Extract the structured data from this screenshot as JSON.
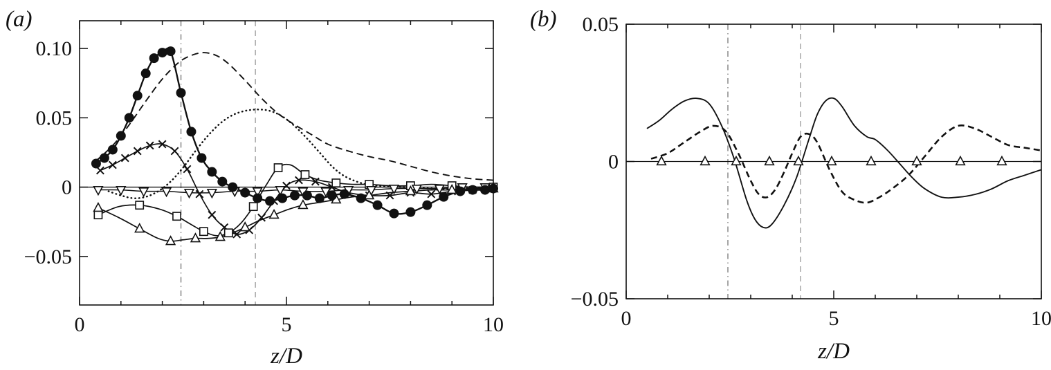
{
  "figure": {
    "description": "Two-panel line chart figure",
    "panel_count": 2
  },
  "chart_data": [
    {
      "type": "line",
      "panel_label": "(a)",
      "title": "",
      "xlabel": "z/D",
      "ylabel": "",
      "xlim": [
        0,
        10
      ],
      "ylim": [
        -0.085,
        0.12
      ],
      "grid": false,
      "legend": "none",
      "zero_line": true,
      "x_major_ticks": [
        0,
        5,
        10
      ],
      "x_tick_labels": [
        "0",
        "5",
        "10"
      ],
      "x_minor_ticks": [
        1,
        2,
        3,
        4,
        6,
        7,
        8,
        9
      ],
      "y_ticks": [
        -0.05,
        0,
        0.05,
        0.1
      ],
      "y_tick_labels": [
        "−0.05",
        "0",
        "0.05",
        "0.10"
      ],
      "ref_lines": [
        {
          "x": 2.45,
          "style": "dashdot",
          "color": "#8f8f8f"
        },
        {
          "x": 4.25,
          "style": "gray-dashed",
          "color": "#ababab"
        }
      ],
      "series": [
        {
          "name": "dashed-line",
          "style": "dashed",
          "width": 1.9,
          "marker": "none",
          "x": [
            0.4,
            0.8,
            1.2,
            1.6,
            2.0,
            2.4,
            2.7,
            3.0,
            3.3,
            3.6,
            4.0,
            4.4,
            4.8,
            5.2,
            5.6,
            6.0,
            6.5,
            7.0,
            7.5,
            8.0,
            8.5,
            9.0,
            9.5,
            10.0
          ],
          "y": [
            0.019,
            0.03,
            0.045,
            0.062,
            0.078,
            0.09,
            0.095,
            0.097,
            0.095,
            0.089,
            0.077,
            0.064,
            0.053,
            0.045,
            0.038,
            0.031,
            0.026,
            0.022,
            0.019,
            0.015,
            0.011,
            0.008,
            0.006,
            0.005
          ]
        },
        {
          "name": "dotted-line",
          "style": "dotted",
          "width": 2.5,
          "marker": "none",
          "x": [
            0.7,
            1.0,
            1.3,
            1.6,
            1.9,
            2.2,
            2.5,
            2.8,
            3.1,
            3.4,
            3.7,
            4.0,
            4.3,
            4.6,
            4.9,
            5.2,
            5.5,
            5.8,
            6.1,
            6.4,
            6.8,
            7.2,
            7.8,
            8.5,
            9.2,
            10.0
          ],
          "y": [
            -0.003,
            -0.006,
            -0.008,
            -0.007,
            -0.003,
            0.004,
            0.014,
            0.026,
            0.037,
            0.046,
            0.052,
            0.055,
            0.056,
            0.055,
            0.051,
            0.044,
            0.035,
            0.025,
            0.015,
            0.008,
            0.003,
            0.001,
            0.0,
            -0.001,
            -0.001,
            0.0
          ]
        },
        {
          "name": "cross-markers",
          "style": "solid",
          "width": 1.7,
          "marker": "x",
          "marker_every": 1,
          "x": [
            0.5,
            0.8,
            1.1,
            1.4,
            1.7,
            2.0,
            2.3,
            2.6,
            2.9,
            3.2,
            3.5,
            3.8,
            4.1,
            4.4,
            4.7,
            5.0,
            5.3,
            5.7,
            6.1,
            6.5,
            7.0,
            7.5,
            8.0,
            8.5,
            9.0,
            9.5,
            10.0
          ],
          "y": [
            0.012,
            0.016,
            0.021,
            0.026,
            0.03,
            0.031,
            0.026,
            0.013,
            -0.005,
            -0.02,
            -0.029,
            -0.034,
            -0.031,
            -0.022,
            -0.01,
            0.001,
            0.005,
            0.004,
            0.0,
            -0.004,
            -0.006,
            -0.006,
            -0.004,
            -0.005,
            -0.003,
            -0.002,
            -0.001
          ]
        },
        {
          "name": "open-squares",
          "style": "solid",
          "width": 1.7,
          "marker": "square-open",
          "marker_every": 2,
          "x": [
            0.45,
            0.95,
            1.45,
            1.95,
            2.35,
            2.7,
            3.0,
            3.3,
            3.6,
            3.9,
            4.2,
            4.5,
            4.8,
            5.1,
            5.45,
            5.8,
            6.2,
            6.6,
            7.0,
            7.5,
            8.0,
            8.5,
            9.0,
            9.5,
            10.0
          ],
          "y": [
            -0.02,
            -0.014,
            -0.013,
            -0.016,
            -0.021,
            -0.027,
            -0.032,
            -0.035,
            -0.033,
            -0.026,
            -0.014,
            0.001,
            0.014,
            0.016,
            0.009,
            0.005,
            0.003,
            0.002,
            0.002,
            0.001,
            0.001,
            0.002,
            0.001,
            0.0,
            0.0
          ]
        },
        {
          "name": "open-up-triangles",
          "style": "solid",
          "width": 1.7,
          "marker": "triangle-up-open",
          "marker_every": 2,
          "x": [
            0.45,
            0.95,
            1.45,
            1.9,
            2.2,
            2.5,
            2.8,
            3.1,
            3.4,
            3.7,
            4.0,
            4.35,
            4.7,
            5.05,
            5.4,
            5.8,
            6.2,
            6.6,
            7.0,
            7.5,
            8.0,
            8.5,
            9.0,
            9.5,
            10.0
          ],
          "y": [
            -0.015,
            -0.022,
            -0.03,
            -0.037,
            -0.039,
            -0.038,
            -0.037,
            -0.037,
            -0.036,
            -0.033,
            -0.029,
            -0.024,
            -0.02,
            -0.016,
            -0.013,
            -0.011,
            -0.009,
            -0.007,
            -0.006,
            -0.004,
            -0.003,
            -0.002,
            -0.002,
            -0.001,
            -0.001
          ]
        },
        {
          "name": "open-down-triangles",
          "style": "solid",
          "width": 1.5,
          "marker": "triangle-down-open",
          "marker_every": 1,
          "x": [
            0.45,
            1.0,
            1.55,
            2.1,
            2.65,
            3.2,
            3.75,
            4.3,
            4.85,
            5.4,
            5.95,
            6.5,
            7.05,
            7.6,
            8.15,
            8.7,
            9.25,
            9.8
          ],
          "y": [
            -0.002,
            -0.002,
            -0.003,
            -0.003,
            -0.004,
            -0.004,
            -0.003,
            -0.003,
            -0.002,
            -0.003,
            -0.003,
            -0.002,
            -0.002,
            -0.001,
            -0.001,
            -0.001,
            0.0,
            0.0
          ]
        },
        {
          "name": "filled-circles",
          "style": "solid",
          "width": 2.4,
          "marker": "circle-filled",
          "marker_every": 1,
          "x": [
            0.4,
            0.6,
            0.8,
            1.0,
            1.2,
            1.4,
            1.6,
            1.8,
            2.0,
            2.2,
            2.45,
            2.7,
            2.95,
            3.2,
            3.45,
            3.7,
            4.0,
            4.3,
            4.6,
            4.9,
            5.2,
            5.5,
            5.8,
            6.1,
            6.4,
            6.8,
            7.2,
            7.6,
            8.0,
            8.4,
            8.8,
            9.2,
            9.5,
            9.8,
            10.0
          ],
          "y": [
            0.017,
            0.021,
            0.027,
            0.037,
            0.05,
            0.066,
            0.082,
            0.093,
            0.097,
            0.098,
            0.068,
            0.04,
            0.021,
            0.011,
            0.004,
            0.0,
            -0.004,
            -0.008,
            -0.01,
            -0.008,
            -0.006,
            -0.006,
            -0.008,
            -0.006,
            -0.005,
            -0.008,
            -0.013,
            -0.019,
            -0.018,
            -0.013,
            -0.007,
            -0.003,
            -0.002,
            -0.002,
            -0.001
          ]
        }
      ]
    },
    {
      "type": "line",
      "panel_label": "(b)",
      "title": "",
      "xlabel": "z/D",
      "ylabel": "",
      "xlim": [
        0,
        10
      ],
      "ylim": [
        -0.05,
        0.05
      ],
      "grid": false,
      "legend": "none",
      "zero_line": true,
      "x_major_ticks": [
        0,
        5,
        10
      ],
      "x_tick_labels": [
        "0",
        "5",
        "10"
      ],
      "x_minor_ticks": [
        1,
        2,
        3,
        4,
        6,
        7,
        8,
        9
      ],
      "y_ticks": [
        -0.05,
        0,
        0.05
      ],
      "y_tick_labels": [
        "−0.05",
        "0",
        "0.05"
      ],
      "ref_lines": [
        {
          "x": 2.45,
          "style": "dashdot",
          "color": "#8f8f8f"
        },
        {
          "x": 4.2,
          "style": "gray-dashed",
          "color": "#ababab"
        }
      ],
      "series": [
        {
          "name": "solid-line",
          "style": "solid",
          "width": 1.9,
          "marker": "none",
          "x": [
            0.5,
            0.8,
            1.1,
            1.4,
            1.7,
            2.0,
            2.3,
            2.6,
            2.9,
            3.1,
            3.3,
            3.5,
            3.8,
            4.1,
            4.4,
            4.6,
            4.8,
            5.0,
            5.2,
            5.5,
            5.8,
            6.0,
            6.3,
            6.6,
            6.9,
            7.2,
            7.6,
            8.0,
            8.4,
            8.8,
            9.2,
            9.6,
            10.0
          ],
          "y": [
            0.012,
            0.015,
            0.019,
            0.022,
            0.023,
            0.021,
            0.013,
            0.001,
            -0.014,
            -0.021,
            -0.024,
            -0.023,
            -0.016,
            -0.006,
            0.008,
            0.017,
            0.022,
            0.023,
            0.02,
            0.013,
            0.009,
            0.008,
            0.004,
            -0.001,
            -0.006,
            -0.01,
            -0.013,
            -0.013,
            -0.012,
            -0.01,
            -0.007,
            -0.005,
            -0.003
          ]
        },
        {
          "name": "dashed-line",
          "style": "dashed-b",
          "width": 2.6,
          "marker": "none",
          "x": [
            0.6,
            1.0,
            1.4,
            1.8,
            2.1,
            2.4,
            2.7,
            3.0,
            3.2,
            3.4,
            3.6,
            3.8,
            4.0,
            4.2,
            4.4,
            4.6,
            4.9,
            5.2,
            5.5,
            5.8,
            6.1,
            6.4,
            6.8,
            7.2,
            7.6,
            8.0,
            8.4,
            8.8,
            9.2,
            9.6,
            10.0
          ],
          "y": [
            0.001,
            0.003,
            0.007,
            0.011,
            0.013,
            0.011,
            0.003,
            -0.007,
            -0.012,
            -0.013,
            -0.01,
            -0.004,
            0.003,
            0.009,
            0.01,
            0.007,
            -0.003,
            -0.011,
            -0.014,
            -0.015,
            -0.013,
            -0.01,
            -0.005,
            0.002,
            0.009,
            0.013,
            0.012,
            0.009,
            0.006,
            0.005,
            0.004
          ]
        },
        {
          "name": "open-up-triangles-on-zero",
          "style": "solid",
          "width": 1.4,
          "marker": "triangle-up-open",
          "marker_every": 1,
          "draw_line": false,
          "x": [
            0.85,
            1.9,
            2.65,
            3.45,
            4.15,
            4.95,
            5.9,
            7.0,
            8.05,
            9.05
          ],
          "y": [
            0,
            0,
            0,
            0,
            0,
            0,
            0,
            0,
            0,
            0
          ]
        }
      ]
    }
  ]
}
